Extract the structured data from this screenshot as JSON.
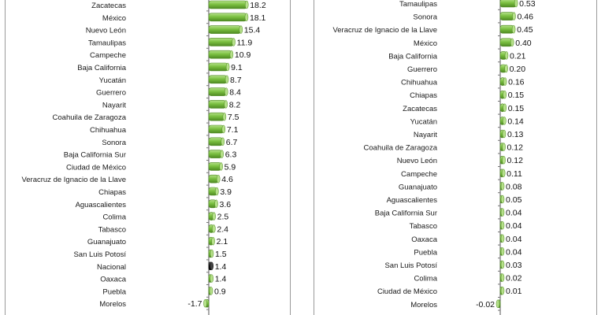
{
  "chart_data": [
    {
      "type": "bar",
      "orientation": "horizontal",
      "categories": [
        "Zacatecas",
        "México",
        "Nuevo León",
        "Tamaulipas",
        "Campeche",
        "Baja California",
        "Yucatán",
        "Guerrero",
        "Nayarit",
        "Coahuila de Zaragoza",
        "Chihuahua",
        "Sonora",
        "Baja California Sur",
        "Ciudad de México",
        "Veracruz de Ignacio de la Llave",
        "Chiapas",
        "Aguascalientes",
        "Colima",
        "Tabasco",
        "Guanajuato",
        "San Luis Potosí",
        "Nacional",
        "Oaxaca",
        "Puebla",
        "Morelos"
      ],
      "values": [
        18.2,
        18.1,
        15.4,
        11.9,
        10.9,
        9.1,
        8.7,
        8.4,
        8.2,
        7.5,
        7.1,
        6.7,
        6.3,
        5.9,
        4.6,
        3.9,
        3.6,
        2.5,
        2.4,
        2.1,
        1.5,
        1.4,
        1.4,
        0.9,
        -1.7
      ],
      "value_labels": [
        "18.2",
        "18.1",
        "15.4",
        "11.9",
        "10.9",
        "9.1",
        "8.7",
        "8.4",
        "8.2",
        "7.5",
        "7.1",
        "6.7",
        "6.3",
        "5.9",
        "4.6",
        "3.9",
        "3.6",
        "2.5",
        "2.4",
        "2.1",
        "1.5",
        "1.4",
        "1.4",
        "0.9",
        "-1.7"
      ],
      "highlight": [
        "Nacional"
      ],
      "colors": {
        "bar": "#7cc142",
        "bar_light": "#b6e08a",
        "bar_dark": "#4e8a22",
        "highlight": "#1f1f1f",
        "highlight_light": "#6a6a6a"
      }
    },
    {
      "type": "bar",
      "orientation": "horizontal",
      "categories": [
        "Tamaulipas",
        "Sonora",
        "Veracruz de Ignacio de la Llave",
        "México",
        "Baja California",
        "Guerrero",
        "Chihuahua",
        "Chiapas",
        "Zacatecas",
        "Yucatán",
        "Nayarit",
        "Coahuila de Zaragoza",
        "Nuevo León",
        "Campeche",
        "Guanajuato",
        "Aguascalientes",
        "Baja California Sur",
        "Tabasco",
        "Oaxaca",
        "Puebla",
        "San Luis Potosí",
        "Colima",
        "Ciudad de México",
        "Morelos"
      ],
      "values": [
        0.53,
        0.46,
        0.45,
        0.4,
        0.21,
        0.2,
        0.16,
        0.15,
        0.15,
        0.14,
        0.13,
        0.12,
        0.12,
        0.11,
        0.08,
        0.05,
        0.04,
        0.04,
        0.04,
        0.04,
        0.03,
        0.02,
        0.01,
        -0.02
      ],
      "value_labels": [
        "0.53",
        "0.46",
        "0.45",
        "0.40",
        "0.21",
        "0.20",
        "0.16",
        "0.15",
        "0.15",
        "0.14",
        "0.13",
        "0.12",
        "0.12",
        "0.11",
        "0.08",
        "0.05",
        "0.04",
        "0.04",
        "0.04",
        "0.04",
        "0.03",
        "0.02",
        "0.01",
        "-0.02"
      ],
      "highlight": [],
      "colors": {
        "bar": "#7cc142",
        "bar_light": "#b6e08a",
        "bar_dark": "#4e8a22",
        "highlight": "#1f1f1f",
        "highlight_light": "#6a6a6a"
      }
    }
  ]
}
